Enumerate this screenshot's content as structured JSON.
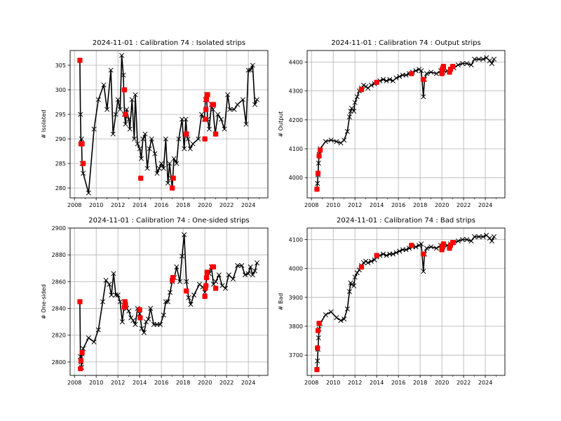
{
  "chart_data": [
    {
      "type": "line",
      "title": "2024-11-01 : Calibration 74 : Isolated strips",
      "xlabel": "",
      "ylabel": "# Isolated",
      "xlim": [
        2007.6,
        2025.8
      ],
      "ylim": [
        278,
        308
      ],
      "xticks": [
        "2008",
        "2010",
        "2012",
        "2014",
        "2016",
        "2018",
        "2020",
        "2022",
        "2024"
      ],
      "yticks": [
        "280",
        "285",
        "290",
        "295",
        "300",
        "305"
      ],
      "grid": true,
      "series": [
        {
          "style": "black line with x markers",
          "color": "#000000",
          "x": [
            2008.5,
            2008.55,
            2008.6,
            2008.65,
            2008.7,
            2008.8,
            2009.3,
            2009.8,
            2010.2,
            2010.7,
            2011.0,
            2011.35,
            2011.55,
            2011.8,
            2012.0,
            2012.2,
            2012.35,
            2012.5,
            2012.6,
            2012.7,
            2012.8,
            2013.0,
            2013.1,
            2013.3,
            2013.5,
            2013.6,
            2013.8,
            2014.0,
            2014.15,
            2014.3,
            2014.5,
            2014.7,
            2014.9,
            2015.1,
            2015.4,
            2015.6,
            2015.8,
            2016.0,
            2016.2,
            2016.4,
            2016.6,
            2016.75,
            2016.9,
            2017.0,
            2017.15,
            2017.4,
            2017.6,
            2017.9,
            2018.1,
            2018.25,
            2018.35,
            2018.45,
            2018.65,
            2018.9,
            2019.4,
            2019.7,
            2019.95,
            2020.05,
            2020.15,
            2020.25,
            2020.4,
            2020.6,
            2020.75,
            2020.95,
            2021.2,
            2021.5,
            2021.8,
            2022.1,
            2022.3,
            2022.7,
            2023.0,
            2023.5,
            2023.8,
            2024.0,
            2024.2,
            2024.4,
            2024.6,
            2024.8
          ],
          "y": [
            306,
            295,
            289,
            290,
            285,
            283,
            279,
            292,
            298,
            301,
            296,
            304,
            291,
            295,
            298,
            296,
            307,
            303,
            295,
            293,
            296,
            294,
            292,
            298,
            290,
            299,
            289,
            288,
            286,
            290,
            291,
            284,
            288,
            290,
            287,
            283,
            284,
            285,
            284,
            290,
            281,
            285,
            282,
            280,
            286,
            285,
            290,
            294,
            288,
            294,
            291,
            290,
            288,
            289,
            290,
            295,
            294,
            298,
            299,
            294,
            292,
            297,
            296,
            291,
            295,
            294,
            292,
            299,
            296,
            296,
            297,
            298,
            293,
            304,
            304,
            305,
            297,
            298
          ]
        },
        {
          "style": "red square markers",
          "color": "#ff0000",
          "x": [
            2008.5,
            2008.6,
            2008.7,
            2008.8,
            2012.6,
            2012.7,
            2014.1,
            2017.0,
            2017.1,
            2018.3,
            2020.0,
            2020.05,
            2020.1,
            2020.15,
            2020.2,
            2020.25,
            2020.7,
            2020.8,
            2021.0
          ],
          "y": [
            306,
            289,
            289,
            285,
            300,
            295,
            282,
            280,
            282,
            291,
            290,
            294,
            296,
            298,
            299,
            299,
            297,
            297,
            291
          ]
        }
      ]
    },
    {
      "type": "line",
      "title": "2024-11-01 : Calibration 74 : Output strips",
      "xlabel": "",
      "ylabel": "# Output",
      "xlim": [
        2007.6,
        2025.8
      ],
      "ylim": [
        3930,
        4440
      ],
      "xticks": [
        "2008",
        "2010",
        "2012",
        "2014",
        "2016",
        "2018",
        "2020",
        "2022",
        "2024"
      ],
      "yticks": [
        "4000",
        "4100",
        "4200",
        "4300",
        "4400"
      ],
      "grid": true,
      "series": [
        {
          "style": "black line with x markers",
          "color": "#000000",
          "x": [
            2008.5,
            2008.55,
            2008.6,
            2008.65,
            2008.7,
            2008.8,
            2009.3,
            2009.8,
            2010.3,
            2010.7,
            2011.0,
            2011.3,
            2011.5,
            2011.6,
            2011.7,
            2011.9,
            2012.0,
            2012.2,
            2012.4,
            2012.6,
            2012.8,
            2013.0,
            2013.2,
            2013.5,
            2013.8,
            2014.0,
            2014.3,
            2014.6,
            2014.9,
            2015.2,
            2015.5,
            2015.8,
            2016.1,
            2016.4,
            2016.7,
            2017.0,
            2017.3,
            2017.6,
            2017.9,
            2018.1,
            2018.3,
            2018.4,
            2018.6,
            2019.0,
            2019.5,
            2019.9,
            2020.1,
            2020.5,
            2020.8,
            2021.1,
            2021.5,
            2021.9,
            2022.3,
            2022.7,
            2023.0,
            2023.4,
            2023.8,
            2024.1,
            2024.4,
            2024.6,
            2024.8
          ],
          "y": [
            3960,
            3980,
            4010,
            4050,
            4080,
            4100,
            4125,
            4130,
            4125,
            4120,
            4130,
            4160,
            4210,
            4230,
            4240,
            4230,
            4260,
            4280,
            4300,
            4310,
            4320,
            4315,
            4310,
            4320,
            4325,
            4330,
            4335,
            4340,
            4335,
            4340,
            4335,
            4345,
            4350,
            4355,
            4355,
            4360,
            4365,
            4370,
            4375,
            4370,
            4280,
            4340,
            4360,
            4365,
            4360,
            4370,
            4365,
            4370,
            4375,
            4380,
            4390,
            4395,
            4395,
            4390,
            4410,
            4410,
            4410,
            4415,
            4405,
            4395,
            4410
          ]
        },
        {
          "style": "red square markers",
          "color": "#ff0000",
          "x": [
            2008.5,
            2008.6,
            2008.7,
            2008.8,
            2012.6,
            2014.0,
            2017.2,
            2018.3,
            2020.0,
            2020.05,
            2020.1,
            2020.15,
            2020.7,
            2020.8,
            2021.0
          ],
          "y": [
            3960,
            4015,
            4075,
            4095,
            4305,
            4330,
            4360,
            4340,
            4360,
            4375,
            4380,
            4385,
            4365,
            4375,
            4385
          ]
        }
      ]
    },
    {
      "type": "line",
      "title": "2024-11-01 : Calibration 74 : One-sided strips",
      "xlabel": "",
      "ylabel": "# One-sided",
      "xlim": [
        2007.6,
        2025.8
      ],
      "ylim": [
        2790,
        2900
      ],
      "xticks": [
        "2008",
        "2010",
        "2012",
        "2014",
        "2016",
        "2018",
        "2020",
        "2022",
        "2024"
      ],
      "yticks": [
        "2800",
        "2820",
        "2840",
        "2860",
        "2880",
        "2900"
      ],
      "grid": true,
      "series": [
        {
          "style": "black line with x markers",
          "color": "#000000",
          "x": [
            2008.5,
            2008.55,
            2008.6,
            2008.65,
            2008.7,
            2008.8,
            2009.3,
            2009.8,
            2010.2,
            2010.6,
            2010.9,
            2011.2,
            2011.4,
            2011.6,
            2011.8,
            2012.0,
            2012.2,
            2012.4,
            2012.6,
            2012.8,
            2013.0,
            2013.2,
            2013.4,
            2013.6,
            2013.8,
            2014.0,
            2014.2,
            2014.4,
            2014.6,
            2014.8,
            2015.0,
            2015.3,
            2015.6,
            2015.9,
            2016.2,
            2016.4,
            2016.6,
            2016.8,
            2017.0,
            2017.2,
            2017.4,
            2017.7,
            2017.9,
            2018.1,
            2018.3,
            2018.5,
            2018.7,
            2019.0,
            2019.5,
            2019.8,
            2020.0,
            2020.2,
            2020.4,
            2020.6,
            2020.8,
            2021.0,
            2021.3,
            2021.6,
            2021.9,
            2022.2,
            2022.6,
            2023.0,
            2023.4,
            2023.7,
            2024.0,
            2024.2,
            2024.4,
            2024.6,
            2024.8
          ],
          "y": [
            2845,
            2804,
            2800,
            2796,
            2806,
            2810,
            2818,
            2815,
            2824,
            2845,
            2861,
            2858,
            2850,
            2866,
            2850,
            2850,
            2845,
            2830,
            2845,
            2840,
            2838,
            2833,
            2831,
            2828,
            2840,
            2836,
            2825,
            2822,
            2830,
            2832,
            2840,
            2828,
            2828,
            2828,
            2835,
            2845,
            2845,
            2852,
            2860,
            2863,
            2871,
            2860,
            2879,
            2895,
            2860,
            2848,
            2843,
            2850,
            2858,
            2856,
            2852,
            2864,
            2866,
            2871,
            2858,
            2860,
            2865,
            2857,
            2855,
            2865,
            2862,
            2872,
            2872,
            2865,
            2866,
            2871,
            2865,
            2868,
            2874
          ]
        },
        {
          "style": "red square markers",
          "color": "#ff0000",
          "x": [
            2008.5,
            2008.55,
            2008.6,
            2008.7,
            2012.6,
            2012.65,
            2012.7,
            2014.0,
            2014.05,
            2017.0,
            2017.05,
            2018.3,
            2020.0,
            2020.05,
            2020.1,
            2020.15,
            2020.2,
            2020.7,
            2020.8,
            2021.0
          ],
          "y": [
            2845,
            2795,
            2801,
            2807,
            2841,
            2845,
            2843,
            2839,
            2833,
            2861,
            2863,
            2853,
            2849,
            2855,
            2857,
            2863,
            2867,
            2871,
            2871,
            2855
          ]
        }
      ]
    },
    {
      "type": "line",
      "title": "2024-11-01 : Calibration 74 : Bad strips",
      "xlabel": "",
      "ylabel": "# Bad",
      "xlim": [
        2007.6,
        2025.8
      ],
      "ylim": [
        3630,
        4140
      ],
      "xticks": [
        "2008",
        "2010",
        "2012",
        "2014",
        "2016",
        "2018",
        "2020",
        "2022",
        "2024"
      ],
      "yticks": [
        "3700",
        "3800",
        "3900",
        "4000",
        "4100"
      ],
      "grid": true,
      "series": [
        {
          "style": "black line with x markers",
          "color": "#000000",
          "x": [
            2008.5,
            2008.55,
            2008.6,
            2008.65,
            2008.7,
            2008.8,
            2009.3,
            2009.8,
            2010.3,
            2010.7,
            2011.0,
            2011.3,
            2011.5,
            2011.6,
            2011.7,
            2011.9,
            2012.0,
            2012.2,
            2012.4,
            2012.6,
            2012.8,
            2013.0,
            2013.2,
            2013.5,
            2013.8,
            2014.0,
            2014.3,
            2014.6,
            2014.9,
            2015.2,
            2015.5,
            2015.8,
            2016.1,
            2016.4,
            2016.7,
            2017.0,
            2017.3,
            2017.6,
            2017.9,
            2018.1,
            2018.3,
            2018.4,
            2018.6,
            2019.0,
            2019.5,
            2019.9,
            2020.1,
            2020.5,
            2020.8,
            2021.1,
            2021.5,
            2021.9,
            2022.3,
            2022.7,
            2023.0,
            2023.4,
            2023.8,
            2024.1,
            2024.4,
            2024.6,
            2024.8
          ],
          "y": [
            3650,
            3680,
            3720,
            3760,
            3790,
            3810,
            3840,
            3850,
            3830,
            3820,
            3825,
            3860,
            3920,
            3950,
            3945,
            3940,
            3970,
            3985,
            3995,
            4010,
            4020,
            4025,
            4020,
            4025,
            4030,
            4040,
            4045,
            4050,
            4045,
            4050,
            4050,
            4055,
            4060,
            4065,
            4065,
            4070,
            4075,
            4075,
            4080,
            4085,
            3990,
            4050,
            4070,
            4075,
            4070,
            4080,
            4075,
            4080,
            4085,
            4090,
            4095,
            4100,
            4100,
            4095,
            4110,
            4110,
            4110,
            4115,
            4105,
            4095,
            4110
          ]
        },
        {
          "style": "red square markers",
          "color": "#ff0000",
          "x": [
            2008.5,
            2008.55,
            2008.6,
            2008.7,
            2012.6,
            2014.0,
            2017.2,
            2018.3,
            2020.0,
            2020.05,
            2020.1,
            2020.15,
            2020.7,
            2020.8,
            2021.0
          ],
          "y": [
            3650,
            3725,
            3785,
            3810,
            4005,
            4045,
            4080,
            4050,
            4065,
            4075,
            4080,
            4085,
            4070,
            4080,
            4090
          ]
        }
      ]
    }
  ]
}
